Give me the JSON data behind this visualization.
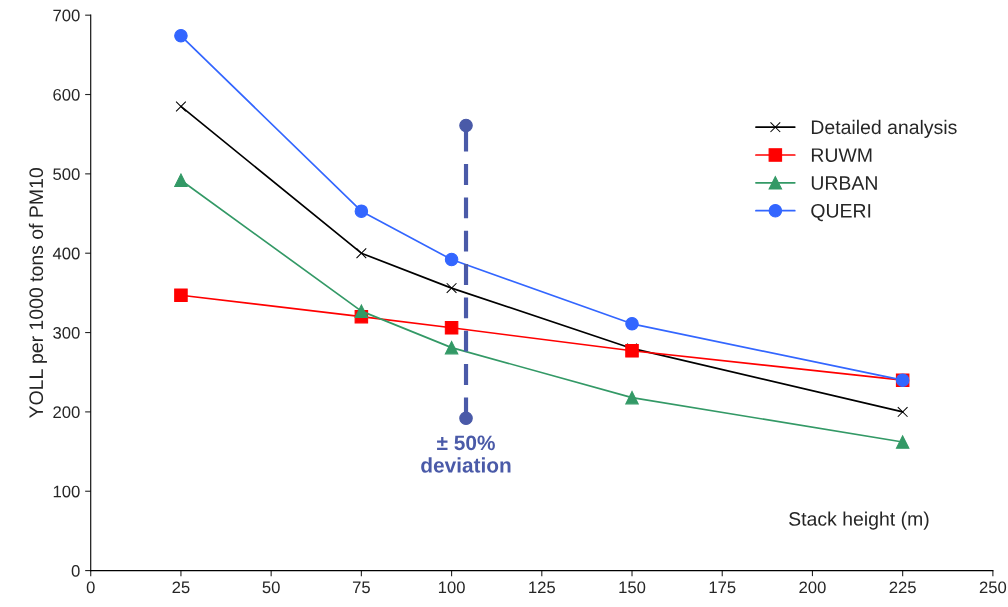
{
  "chart_data": {
    "type": "line",
    "xlabel": "Stack height (m)",
    "ylabel": "YOLL per 1000 tons of PM10",
    "x": [
      25,
      75,
      100,
      150,
      225
    ],
    "series": [
      {
        "name": "Detailed analysis",
        "color": "#000000",
        "marker": "cross",
        "values": [
          585,
          400,
          356,
          280,
          200
        ]
      },
      {
        "name": "RUWM",
        "color": "#ff0000",
        "marker": "square",
        "values": [
          347,
          320,
          306,
          277,
          240
        ]
      },
      {
        "name": "URBAN",
        "color": "#339966",
        "marker": "triangle",
        "values": [
          492,
          327,
          281,
          218,
          162
        ]
      },
      {
        "name": "QUERI",
        "color": "#3366ff",
        "marker": "circle",
        "values": [
          674,
          453,
          392,
          311,
          240
        ]
      },
      {
        "color": "#4a5aa8",
        "marker": "circle",
        "line_style": "dashed",
        "x": [
          104,
          104
        ],
        "values": [
          192,
          561
        ]
      }
    ],
    "annotations": [
      {
        "text": "± 50%\ndeviation",
        "x": 104,
        "y": 192
      }
    ],
    "xlim": [
      0,
      250
    ],
    "xticks": [
      0,
      25,
      50,
      75,
      100,
      125,
      150,
      175,
      200,
      225,
      250
    ],
    "ylim": [
      0,
      700
    ],
    "yticks": [
      0,
      100,
      200,
      300,
      400,
      500,
      600,
      700
    ],
    "grid": false,
    "legend": "right"
  }
}
